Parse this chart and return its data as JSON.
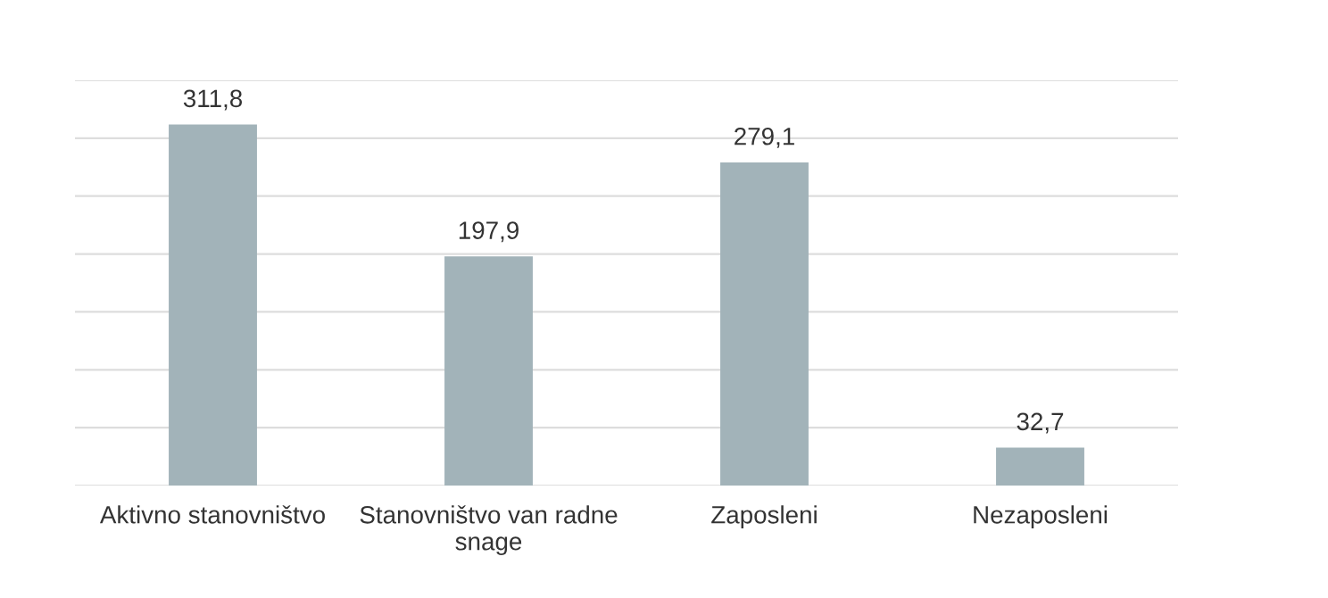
{
  "chart_data": {
    "type": "bar",
    "categories": [
      "Aktivno stanovništvo",
      "Stanovništvo van radne\nsnage",
      "Zaposleni",
      "Nezaposleni"
    ],
    "values": [
      311.8,
      197.9,
      279.1,
      32.7
    ],
    "value_labels": [
      "311,8",
      "197,9",
      "279,1",
      "32,7"
    ],
    "color": "#a2b3b9",
    "ylim": [
      0,
      350
    ],
    "yticks": [
      {
        "value": 0,
        "label": null
      },
      {
        "value": 50,
        "label": null
      },
      {
        "value": 100,
        "label": null
      },
      {
        "value": 150,
        "label": null
      },
      {
        "value": 200,
        "label": null
      },
      {
        "value": 250,
        "label": null
      },
      {
        "value": 300,
        "label": null
      },
      {
        "value": 350,
        "label": null
      }
    ],
    "grid": "y",
    "legend": false
  }
}
